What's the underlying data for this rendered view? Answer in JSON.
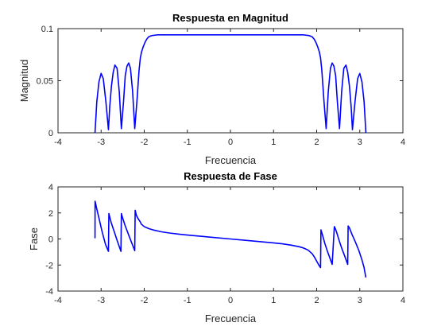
{
  "figure_background": "#ffffff",
  "chart_data": [
    {
      "type": "line",
      "title": "Respuesta en Magnitud",
      "xlabel": "Frecuencia",
      "ylabel": "Magnitud",
      "xlim": [
        -4,
        4
      ],
      "ylim": [
        0,
        0.1
      ],
      "xticks": [
        -4,
        -3,
        -2,
        -1,
        0,
        1,
        2,
        3,
        4
      ],
      "xtick_labels": [
        "-4",
        "-3",
        "-2",
        "-1",
        "0",
        "1",
        "2",
        "3",
        "4"
      ],
      "yticks": [
        0,
        0.05,
        0.1
      ],
      "ytick_labels": [
        "0",
        "0.05",
        "0.1"
      ],
      "grid": false,
      "series": [
        {
          "color": "#0000ff",
          "x": [
            -3.1416,
            -3.1,
            -3.05,
            -3.0,
            -2.95,
            -2.89,
            -2.83,
            -2.8,
            -2.76,
            -2.72,
            -2.68,
            -2.63,
            -2.58,
            -2.53,
            -2.48,
            -2.44,
            -2.4,
            -2.36,
            -2.32,
            -2.27,
            -2.22,
            -2.17,
            -2.12,
            -2.09,
            -2.06,
            -2.02,
            -1.98,
            -1.94,
            -1.9,
            -1.85,
            -1.8,
            -1.7,
            -1.6,
            -1.4,
            -1.2,
            -1.0,
            -0.5,
            0.0,
            0.5,
            1.0,
            1.2,
            1.4,
            1.6,
            1.7,
            1.8,
            1.85,
            1.9,
            1.94,
            1.98,
            2.02,
            2.06,
            2.09,
            2.12,
            2.17,
            2.22,
            2.27,
            2.32,
            2.36,
            2.4,
            2.44,
            2.48,
            2.53,
            2.58,
            2.63,
            2.68,
            2.72,
            2.76,
            2.8,
            2.83,
            2.89,
            2.95,
            3.0,
            3.05,
            3.1,
            3.1416
          ],
          "y": [
            0.0,
            0.03,
            0.049,
            0.057,
            0.052,
            0.03,
            0.003,
            0.025,
            0.045,
            0.058,
            0.065,
            0.062,
            0.04,
            0.004,
            0.03,
            0.055,
            0.064,
            0.067,
            0.062,
            0.04,
            0.004,
            0.03,
            0.06,
            0.072,
            0.078,
            0.083,
            0.087,
            0.09,
            0.092,
            0.093,
            0.0935,
            0.094,
            0.094,
            0.094,
            0.094,
            0.094,
            0.094,
            0.094,
            0.094,
            0.094,
            0.094,
            0.094,
            0.094,
            0.094,
            0.0935,
            0.093,
            0.092,
            0.09,
            0.087,
            0.083,
            0.078,
            0.072,
            0.06,
            0.03,
            0.004,
            0.04,
            0.062,
            0.067,
            0.064,
            0.055,
            0.03,
            0.004,
            0.04,
            0.062,
            0.065,
            0.058,
            0.045,
            0.025,
            0.003,
            0.03,
            0.052,
            0.057,
            0.049,
            0.03,
            0.0
          ]
        }
      ]
    },
    {
      "type": "line",
      "title": "Respuesta de Fase",
      "xlabel": "Frecuencia",
      "ylabel": "Fase",
      "xlim": [
        -4,
        4
      ],
      "ylim": [
        -4,
        4
      ],
      "xticks": [
        -4,
        -3,
        -2,
        -1,
        0,
        1,
        2,
        3,
        4
      ],
      "xtick_labels": [
        "-4",
        "-3",
        "-2",
        "-1",
        "0",
        "1",
        "2",
        "3",
        "4"
      ],
      "yticks": [
        -4,
        -2,
        0,
        2,
        4
      ],
      "ytick_labels": [
        "-4",
        "-2",
        "0",
        "2",
        "4"
      ],
      "grid": false,
      "series": [
        {
          "color": "#0000ff",
          "x": [
            -3.1416,
            -3.14,
            -3.1,
            -3.05,
            -2.98,
            -2.9,
            -2.83,
            -2.82,
            -2.77,
            -2.7,
            -2.62,
            -2.54,
            -2.53,
            -2.5,
            -2.44,
            -2.36,
            -2.29,
            -2.22,
            -2.21,
            -2.18,
            -2.14,
            -2.1,
            -2.09,
            -2.07,
            -2.0,
            -1.9,
            -1.8,
            -1.6,
            -1.4,
            -1.2,
            -1.0,
            -0.5,
            0.0,
            0.5,
            1.0,
            1.2,
            1.4,
            1.6,
            1.7,
            1.8,
            1.9,
            1.95,
            2.0,
            2.05,
            2.09,
            2.1,
            2.14,
            2.19,
            2.25,
            2.3,
            2.36,
            2.41,
            2.42,
            2.46,
            2.52,
            2.58,
            2.66,
            2.72,
            2.73,
            2.76,
            2.82,
            2.9,
            2.98,
            3.05,
            3.1,
            3.14
          ],
          "y": [
            0.05,
            2.9,
            2.3,
            1.6,
            0.6,
            -0.4,
            -0.95,
            1.95,
            1.3,
            0.6,
            -0.2,
            -0.95,
            1.95,
            1.6,
            1.0,
            0.3,
            -0.3,
            -0.9,
            2.2,
            1.8,
            1.55,
            1.35,
            1.3,
            1.15,
            0.95,
            0.8,
            0.7,
            0.55,
            0.45,
            0.37,
            0.3,
            0.15,
            0.0,
            -0.15,
            -0.3,
            -0.37,
            -0.47,
            -0.6,
            -0.7,
            -0.85,
            -1.15,
            -1.4,
            -1.7,
            -2.0,
            -2.2,
            0.7,
            0.25,
            -0.35,
            -0.95,
            -1.4,
            -1.95,
            0.95,
            0.9,
            0.55,
            -0.1,
            -0.7,
            -1.4,
            -1.95,
            1.0,
            0.85,
            0.35,
            -0.25,
            -0.9,
            -1.6,
            -2.2,
            -2.95
          ]
        }
      ]
    }
  ]
}
